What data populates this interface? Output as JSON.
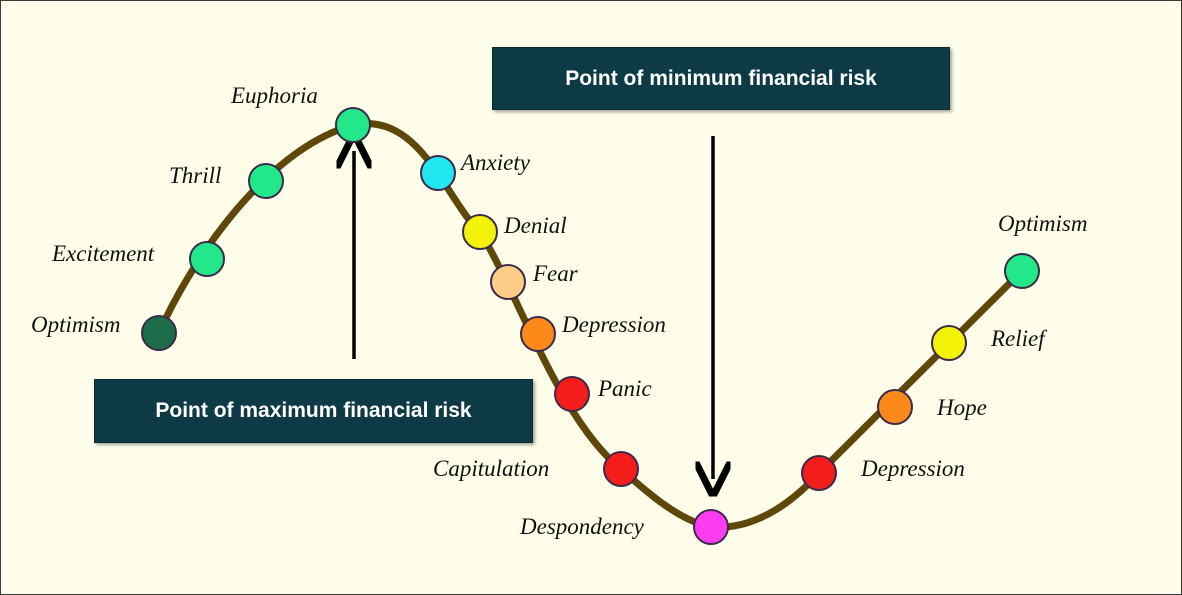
{
  "stages": [
    {
      "label": "Optimism",
      "color": "#1b6e49"
    },
    {
      "label": "Excitement",
      "color": "#22e88a"
    },
    {
      "label": "Thrill",
      "color": "#22e88a"
    },
    {
      "label": "Euphoria",
      "color": "#22e88a"
    },
    {
      "label": "Anxiety",
      "color": "#22e6f0"
    },
    {
      "label": "Denial",
      "color": "#f5f20a"
    },
    {
      "label": "Fear",
      "color": "#fdcd88"
    },
    {
      "label": "Depression",
      "color": "#fb8a1a"
    },
    {
      "label": "Panic",
      "color": "#f51c1c"
    },
    {
      "label": "Capitulation",
      "color": "#f51c1c"
    },
    {
      "label": "Despondency",
      "color": "#fb3cf0"
    },
    {
      "label": "Depression",
      "color": "#f51c1c"
    },
    {
      "label": "Hope",
      "color": "#fb8a1a"
    },
    {
      "label": "Relief",
      "color": "#f5f20a"
    },
    {
      "label": "Optimism",
      "color": "#22e88a"
    }
  ],
  "callouts": {
    "max_risk": "Point of maximum financial risk",
    "min_risk": "Point of minimum financial risk"
  },
  "colors": {
    "curve": "#5e4709",
    "callout_bg": "#0d3a45",
    "arrow": "#000000"
  }
}
